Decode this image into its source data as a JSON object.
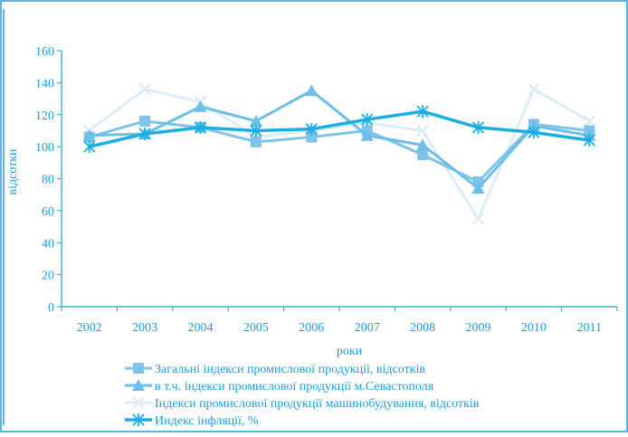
{
  "chart_data": {
    "type": "line",
    "title": "",
    "xlabel": "роки",
    "ylabel": "відсотки",
    "categories": [
      "2002",
      "2003",
      "2004",
      "2005",
      "2006",
      "2007",
      "2008",
      "2009",
      "2010",
      "2011"
    ],
    "ylim": [
      0,
      160
    ],
    "yticks": [
      0,
      20,
      40,
      60,
      80,
      100,
      120,
      140,
      160
    ],
    "grid": false,
    "legend_position": "bottom",
    "series": [
      {
        "name": "Загальні індекси промислової продукції, відсотків",
        "marker": "square",
        "color": "#7fc3e8",
        "values": [
          106,
          116,
          112,
          103,
          106,
          110,
          95,
          78,
          114,
          110
        ]
      },
      {
        "name": "в т.ч. індекси промислової продукції м.Севастополя",
        "marker": "triangle",
        "color": "#6cbfe7",
        "values": [
          107,
          108,
          125,
          116,
          135,
          107,
          101,
          74,
          113,
          107
        ]
      },
      {
        "name": "Індекси промислової продукції машинобудування, відсотків",
        "marker": "x",
        "color": "#dcedf7",
        "values": [
          110,
          136,
          128,
          106,
          110,
          115,
          110,
          55,
          136,
          116
        ]
      },
      {
        "name": "Индекс інфляції, %",
        "marker": "star",
        "color": "#1aaee3",
        "values": [
          100,
          108,
          112,
          110,
          111,
          117,
          122,
          112,
          109,
          104
        ]
      }
    ]
  },
  "colors": {
    "axis": "#1aa0d8",
    "text": "#1a9ed8",
    "frame": "#1aa0d8"
  }
}
